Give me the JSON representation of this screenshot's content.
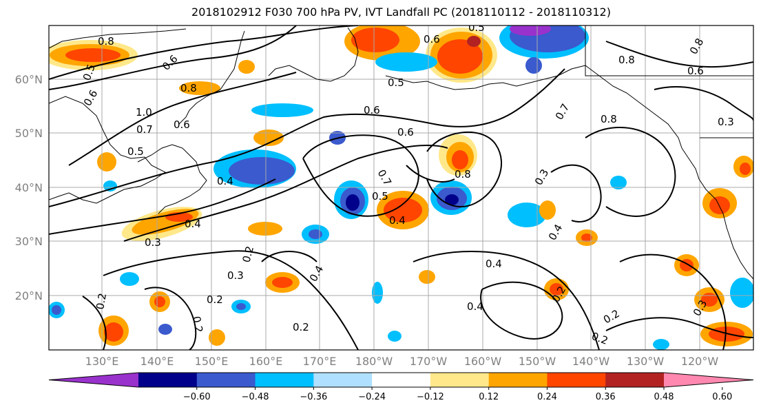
{
  "title": "2018102912 F030 700 hPa PV, IVT Landfall PC (2018110112 - 2018110312)",
  "lat_labels": [
    "60°N",
    "50°N",
    "40°N",
    "30°N",
    "20°N"
  ],
  "lon_labels": [
    "130°E",
    "140°E",
    "150°E",
    "160°E",
    "170°E",
    "180°W",
    "170°W",
    "160°W",
    "150°W",
    "140°W",
    "130°W",
    "120°W"
  ],
  "colorbar": {
    "colors": [
      "#9932cc",
      "#00008b",
      "#3a5acd",
      "#00bfff",
      "#b0e0ff",
      "#ffffff",
      "#ffe88a",
      "#ffa500",
      "#ff4500",
      "#b22222",
      "#ff88b0"
    ],
    "tick_labels": [
      "−0.60",
      "−0.48",
      "−0.36",
      "−0.24",
      "−0.12",
      "0.12",
      "0.24",
      "0.36",
      "0.48",
      "0.60"
    ]
  },
  "contour_labels": [
    "0.8",
    "0.5",
    "0.6",
    "0.8",
    "1.0",
    "0.7",
    "0.6",
    "0.5",
    "0.4",
    "0.3",
    "0.4",
    "0.2",
    "0.3",
    "0.2",
    "0.4",
    "0.2",
    "0.5",
    "0.6",
    "0.6",
    "0.5",
    "0.4",
    "0.7",
    "0.8",
    "0.6",
    "0.7",
    "0.8",
    "0.5",
    "0.3",
    "0.3",
    "0.4",
    "0.4",
    "0.4",
    "0.2",
    "0.2",
    "0.2",
    "0.6",
    "0.8",
    "0.8",
    "0.6",
    "0.3",
    "0.2",
    "0.2"
  ]
}
